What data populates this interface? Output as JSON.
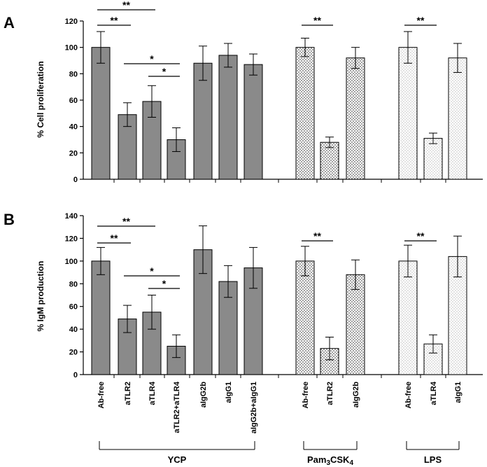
{
  "chart_data": [
    {
      "type": "bar",
      "panel_label": "A",
      "ylabel": "% Cell proliferation",
      "ylim": [
        0,
        120
      ],
      "yticks": [
        "0",
        "20",
        "40",
        "60",
        "80",
        "100",
        "120"
      ],
      "categories": [
        "Ab-free",
        "aTLR2",
        "aTLR4",
        "aTLR2+aTLR4",
        "aIgG2b",
        "aIgG1",
        "aIgG2b+aIgG1",
        "Ab-free",
        "aTLR2",
        "aIgG2b",
        "Ab-free",
        "aTLR4",
        "aIgG1"
      ],
      "values": [
        100,
        49,
        59,
        30,
        88,
        94,
        87,
        100,
        28,
        92,
        100,
        31,
        92
      ],
      "errors": [
        12,
        9,
        12,
        9,
        13,
        9,
        8,
        7,
        4,
        8,
        12,
        4,
        11
      ],
      "fills": [
        "solid",
        "solid",
        "solid",
        "solid",
        "solid",
        "solid",
        "solid",
        "dense",
        "dense",
        "dense",
        "sparse",
        "sparse",
        "sparse"
      ],
      "significance": [
        {
          "from": 0,
          "to": 2,
          "label": "**"
        },
        {
          "from": 0,
          "to": 1,
          "label": "**"
        },
        {
          "from": 1,
          "to": 3,
          "label": "*"
        },
        {
          "from": 2,
          "to": 3,
          "label": "*"
        },
        {
          "from": 7,
          "to": 8,
          "label": "**"
        },
        {
          "from": 10,
          "to": 11,
          "label": "**"
        }
      ]
    },
    {
      "type": "bar",
      "panel_label": "B",
      "ylabel": "% IgM production",
      "ylim": [
        0,
        140
      ],
      "yticks": [
        "0",
        "20",
        "40",
        "60",
        "80",
        "100",
        "120",
        "140"
      ],
      "categories": [
        "Ab-free",
        "aTLR2",
        "aTLR4",
        "aTLR2+aTLR4",
        "aIgG2b",
        "aIgG1",
        "aIgG2b+aIgG1",
        "Ab-free",
        "aTLR2",
        "aIgG2b",
        "Ab-free",
        "aTLR4",
        "aIgG1"
      ],
      "values": [
        100,
        49,
        55,
        25,
        110,
        82,
        94,
        100,
        23,
        88,
        100,
        27,
        104
      ],
      "errors": [
        12,
        12,
        15,
        10,
        21,
        14,
        18,
        13,
        10,
        13,
        14,
        8,
        18
      ],
      "fills": [
        "solid",
        "solid",
        "solid",
        "solid",
        "solid",
        "solid",
        "solid",
        "dense",
        "dense",
        "dense",
        "sparse",
        "sparse",
        "sparse"
      ],
      "significance": [
        {
          "from": 0,
          "to": 2,
          "label": "**"
        },
        {
          "from": 0,
          "to": 1,
          "label": "**"
        },
        {
          "from": 1,
          "to": 3,
          "label": "*"
        },
        {
          "from": 2,
          "to": 3,
          "label": "*"
        },
        {
          "from": 7,
          "to": 8,
          "label": "**"
        },
        {
          "from": 10,
          "to": 11,
          "label": "**"
        }
      ]
    }
  ],
  "x_category_labels": [
    "Ab-free",
    "aTLR2",
    "aTLR4",
    "aTLR2+aTLR4",
    "aIgG2b",
    "aIgG1",
    "aIgG2b+aIgG1",
    "Ab-free",
    "aTLR2",
    "aIgG2b",
    "Ab-free",
    "aTLR4",
    "aIgG1"
  ],
  "groups": [
    {
      "label": "YCP",
      "from": 0,
      "to": 6
    },
    {
      "label": "Pam3CSK4",
      "from": 7,
      "to": 9
    },
    {
      "label": "LPS",
      "from": 10,
      "to": 12
    }
  ],
  "colors": {
    "solid": "#8a8a8a",
    "dense_dot": "#333333",
    "sparse_dot": "#555555",
    "axis": "#000000"
  }
}
